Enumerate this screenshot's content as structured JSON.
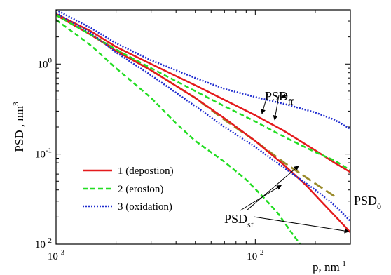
{
  "chart_data": {
    "type": "line",
    "xscale": "log",
    "yscale": "log",
    "xlim": [
      0.001,
      0.03
    ],
    "ylim": [
      0.01,
      4
    ],
    "xlabel": {
      "base": "p, nm",
      "exp": "-1"
    },
    "ylabel": {
      "base": "PSD , nm",
      "exp": "3"
    },
    "x_ticks": [
      {
        "value": 0.001,
        "base": "10",
        "exp": "-3"
      },
      {
        "value": 0.01,
        "base": "10",
        "exp": "-2"
      }
    ],
    "y_ticks": [
      {
        "value": 0.01,
        "base": "10",
        "exp": "-2"
      },
      {
        "value": 0.1,
        "base": "10",
        "exp": "-1"
      },
      {
        "value": 1,
        "base": "10",
        "exp": "0"
      }
    ],
    "legend": {
      "position": "lower-left",
      "items": [
        {
          "series": "deposition",
          "label": "1 (depostion)"
        },
        {
          "series": "erosion",
          "label": "2 (erosion)"
        },
        {
          "series": "oxidation",
          "label": "3 (oxidation)"
        }
      ]
    },
    "series": [
      {
        "key": "psd0",
        "color": "#9a8a2a",
        "style": "longdash",
        "points": [
          [
            0.001,
            3.5
          ],
          [
            0.0014,
            2.3
          ],
          [
            0.002,
            1.45
          ],
          [
            0.003,
            0.85
          ],
          [
            0.005,
            0.42
          ],
          [
            0.007,
            0.24
          ],
          [
            0.01,
            0.14
          ],
          [
            0.014,
            0.08
          ],
          [
            0.02,
            0.047
          ],
          [
            0.025,
            0.034
          ]
        ]
      },
      {
        "key": "deposition-ff",
        "color": "#e41a1c",
        "style": "solid",
        "points": [
          [
            0.001,
            3.6
          ],
          [
            0.0015,
            2.3
          ],
          [
            0.002,
            1.55
          ],
          [
            0.003,
            1.0
          ],
          [
            0.005,
            0.58
          ],
          [
            0.007,
            0.4
          ],
          [
            0.01,
            0.27
          ],
          [
            0.014,
            0.18
          ],
          [
            0.02,
            0.11
          ],
          [
            0.025,
            0.08
          ],
          [
            0.03,
            0.063
          ]
        ]
      },
      {
        "key": "deposition-sf",
        "color": "#e41a1c",
        "style": "solid",
        "points": [
          [
            0.001,
            3.5
          ],
          [
            0.0015,
            2.1
          ],
          [
            0.002,
            1.4
          ],
          [
            0.003,
            0.85
          ],
          [
            0.005,
            0.42
          ],
          [
            0.007,
            0.25
          ],
          [
            0.01,
            0.14
          ],
          [
            0.014,
            0.075
          ],
          [
            0.018,
            0.045
          ],
          [
            0.022,
            0.028
          ],
          [
            0.026,
            0.019
          ],
          [
            0.03,
            0.0135
          ]
        ]
      },
      {
        "key": "erosion-ff",
        "color": "#22dd22",
        "style": "dash",
        "points": [
          [
            0.001,
            3.5
          ],
          [
            0.0015,
            2.1
          ],
          [
            0.002,
            1.45
          ],
          [
            0.003,
            0.9
          ],
          [
            0.005,
            0.5
          ],
          [
            0.007,
            0.34
          ],
          [
            0.01,
            0.23
          ],
          [
            0.014,
            0.155
          ],
          [
            0.02,
            0.105
          ],
          [
            0.025,
            0.085
          ],
          [
            0.03,
            0.066
          ]
        ]
      },
      {
        "key": "erosion-sf",
        "color": "#22dd22",
        "style": "dash",
        "points": [
          [
            0.001,
            3.1
          ],
          [
            0.0015,
            1.6
          ],
          [
            0.002,
            0.9
          ],
          [
            0.003,
            0.42
          ],
          [
            0.004,
            0.22
          ],
          [
            0.005,
            0.14
          ],
          [
            0.007,
            0.082
          ],
          [
            0.009,
            0.052
          ],
          [
            0.011,
            0.033
          ],
          [
            0.013,
            0.022
          ],
          [
            0.015,
            0.014
          ],
          [
            0.0168,
            0.01
          ]
        ]
      },
      {
        "key": "oxidation-ff",
        "color": "#1f2ccf",
        "style": "dot",
        "points": [
          [
            0.001,
            4.0
          ],
          [
            0.0015,
            2.5
          ],
          [
            0.002,
            1.7
          ],
          [
            0.003,
            1.1
          ],
          [
            0.005,
            0.7
          ],
          [
            0.007,
            0.53
          ],
          [
            0.01,
            0.43
          ],
          [
            0.014,
            0.36
          ],
          [
            0.02,
            0.29
          ],
          [
            0.025,
            0.24
          ],
          [
            0.03,
            0.19
          ]
        ]
      },
      {
        "key": "oxidation-sf",
        "color": "#1f2ccf",
        "style": "dot",
        "points": [
          [
            0.001,
            3.7
          ],
          [
            0.0015,
            2.2
          ],
          [
            0.002,
            1.35
          ],
          [
            0.003,
            0.75
          ],
          [
            0.005,
            0.34
          ],
          [
            0.007,
            0.2
          ],
          [
            0.01,
            0.12
          ],
          [
            0.014,
            0.07
          ],
          [
            0.02,
            0.04
          ],
          [
            0.025,
            0.027
          ],
          [
            0.03,
            0.018
          ]
        ]
      }
    ],
    "annotations": [
      {
        "key": "ff",
        "base": "PSD",
        "sub": "ff",
        "targets": [
          [
            0.0108,
            0.28
          ],
          [
            0.0125,
            0.24
          ],
          [
            0.0135,
            0.43
          ]
        ]
      },
      {
        "key": "sf",
        "base": "PSD",
        "sub": "sf",
        "targets": [
          [
            0.0135,
            0.045
          ],
          [
            0.0165,
            0.074
          ],
          [
            0.0295,
            0.0138
          ]
        ]
      },
      {
        "key": "zero",
        "base": "PSD",
        "sub": "0",
        "targets": []
      }
    ]
  }
}
